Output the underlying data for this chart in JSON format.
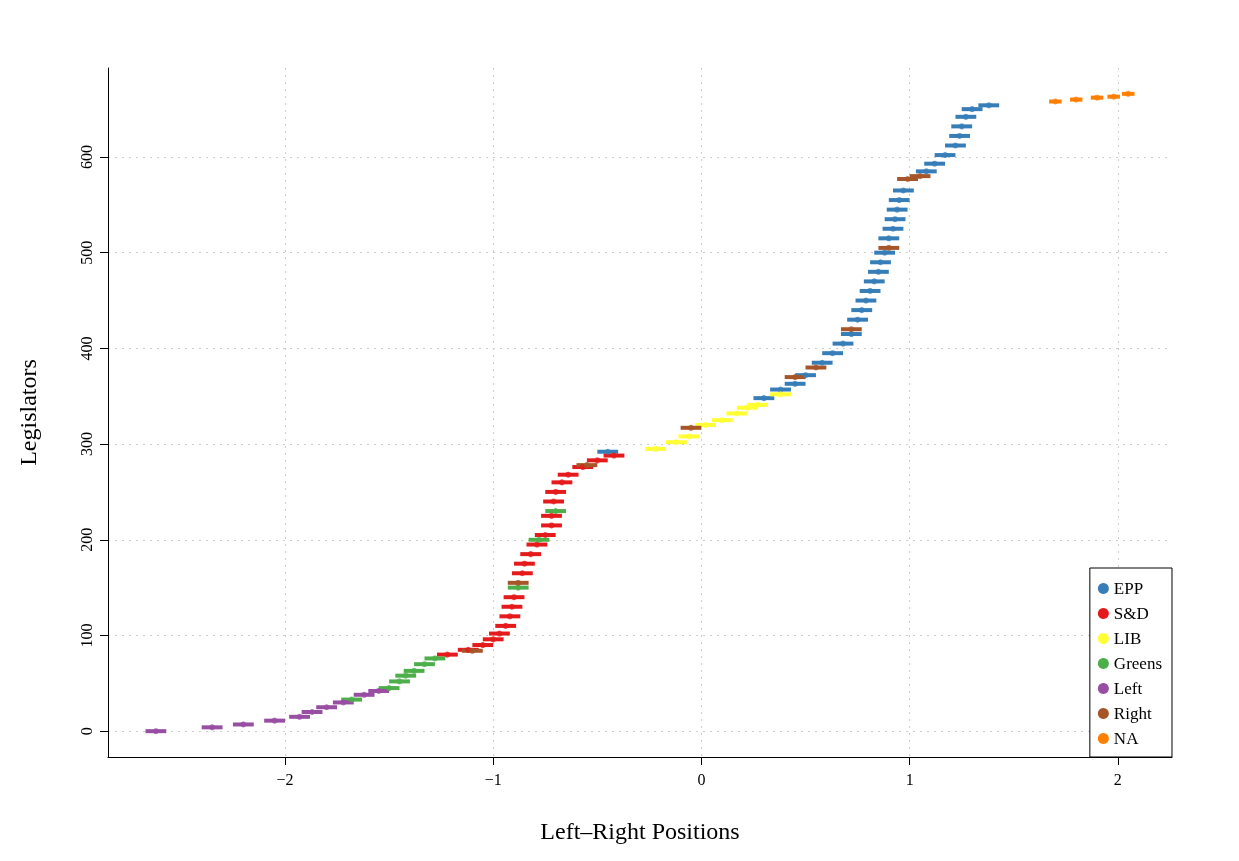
{
  "chart_data": {
    "type": "scatter",
    "xlabel": "Left–Right Positions",
    "ylabel": "Legislators",
    "xlim": [
      -2.85,
      2.26
    ],
    "xticks": [
      {
        "value": -2,
        "label": "−2"
      },
      {
        "value": -1,
        "label": "−1"
      },
      0,
      1,
      2
    ],
    "ylim": [
      -27,
      693
    ],
    "yticks": [
      0,
      100,
      200,
      300,
      400,
      500,
      600
    ],
    "grid": true,
    "legend": "bottom right",
    "marker": "circle",
    "series": [
      {
        "name": "EPP",
        "color": "#377eb8",
        "x": [
          -0.45,
          0.3,
          0.38,
          0.45,
          0.5,
          0.58,
          0.63,
          0.68,
          0.72,
          0.75,
          0.77,
          0.79,
          0.81,
          0.83,
          0.85,
          0.86,
          0.88,
          0.9,
          0.92,
          0.93,
          0.94,
          0.95,
          0.97,
          1.08,
          1.12,
          1.17,
          1.22,
          1.24,
          1.25,
          1.27,
          1.3,
          1.38
        ],
        "values": [
          292,
          348,
          357,
          363,
          372,
          385,
          395,
          405,
          415,
          430,
          440,
          450,
          460,
          470,
          480,
          490,
          500,
          515,
          525,
          535,
          545,
          555,
          565,
          585,
          593,
          602,
          612,
          622,
          632,
          642,
          650,
          654
        ],
        "xerrors": [
          0.05,
          0.05,
          0.05,
          0.05,
          0.05,
          0.05,
          0.05,
          0.05,
          0.05,
          0.05,
          0.05,
          0.05,
          0.05,
          0.05,
          0.05,
          0.05,
          0.05,
          0.05,
          0.05,
          0.05,
          0.05,
          0.05,
          0.05,
          0.05,
          0.05,
          0.05,
          0.05,
          0.05,
          0.05,
          0.05,
          0.05,
          0.05
        ]
      },
      {
        "name": "S&D",
        "color": "#e41a1c",
        "x": [
          -1.22,
          -1.12,
          -1.05,
          -1.0,
          -0.97,
          -0.94,
          -0.92,
          -0.91,
          -0.9,
          -0.86,
          -0.85,
          -0.82,
          -0.79,
          -0.75,
          -0.72,
          -0.72,
          -0.71,
          -0.7,
          -0.67,
          -0.64,
          -0.57,
          -0.5,
          -0.42
        ],
        "values": [
          80,
          85,
          90,
          96,
          102,
          110,
          120,
          130,
          140,
          165,
          175,
          185,
          195,
          205,
          215,
          225,
          240,
          250,
          260,
          268,
          276,
          283,
          288
        ],
        "xerrors": [
          0.05,
          0.05,
          0.05,
          0.05,
          0.05,
          0.05,
          0.05,
          0.05,
          0.05,
          0.05,
          0.05,
          0.05,
          0.05,
          0.05,
          0.05,
          0.05,
          0.05,
          0.05,
          0.05,
          0.05,
          0.05,
          0.05,
          0.05
        ]
      },
      {
        "name": "LIB",
        "color": "#ffff33",
        "x": [
          -0.22,
          -0.12,
          -0.06,
          0.02,
          0.1,
          0.17,
          0.22,
          0.27,
          0.38
        ],
        "values": [
          295,
          302,
          308,
          320,
          325,
          332,
          338,
          341,
          352
        ],
        "xerrors": [
          0.05,
          0.05,
          0.05,
          0.05,
          0.05,
          0.05,
          0.05,
          0.05,
          0.05
        ]
      },
      {
        "name": "Greens",
        "color": "#4daf4a",
        "x": [
          -1.68,
          -1.5,
          -1.45,
          -1.42,
          -1.38,
          -1.33,
          -1.28,
          -0.88,
          -0.78,
          -0.7
        ],
        "values": [
          33,
          45,
          52,
          58,
          63,
          70,
          76,
          150,
          200,
          230
        ],
        "xerrors": [
          0.05,
          0.05,
          0.05,
          0.05,
          0.05,
          0.05,
          0.05,
          0.05,
          0.05,
          0.05
        ]
      },
      {
        "name": "Left",
        "color": "#984ea3",
        "x": [
          -2.62,
          -2.35,
          -2.2,
          -2.05,
          -1.93,
          -1.87,
          -1.8,
          -1.72,
          -1.62,
          -1.55
        ],
        "values": [
          0,
          4,
          7,
          11,
          15,
          20,
          25,
          30,
          38,
          42
        ],
        "xerrors": [
          0.05,
          0.05,
          0.05,
          0.05,
          0.05,
          0.05,
          0.05,
          0.05,
          0.05,
          0.05
        ]
      },
      {
        "name": "Right",
        "color": "#a65628",
        "x": [
          -1.1,
          -0.88,
          -0.55,
          -0.05,
          0.45,
          0.55,
          0.72,
          0.9,
          0.99,
          1.05
        ],
        "values": [
          84,
          155,
          278,
          317,
          370,
          380,
          420,
          505,
          577,
          580
        ],
        "xerrors": [
          0.05,
          0.05,
          0.05,
          0.05,
          0.05,
          0.05,
          0.05,
          0.05,
          0.05,
          0.05
        ]
      },
      {
        "name": "NA",
        "color": "#ff7f00",
        "x": [
          1.7,
          1.8,
          1.9,
          1.98,
          2.05
        ],
        "values": [
          658,
          660,
          662,
          663,
          666
        ],
        "xerrors": [
          0.03,
          0.03,
          0.03,
          0.03,
          0.03
        ]
      }
    ]
  }
}
